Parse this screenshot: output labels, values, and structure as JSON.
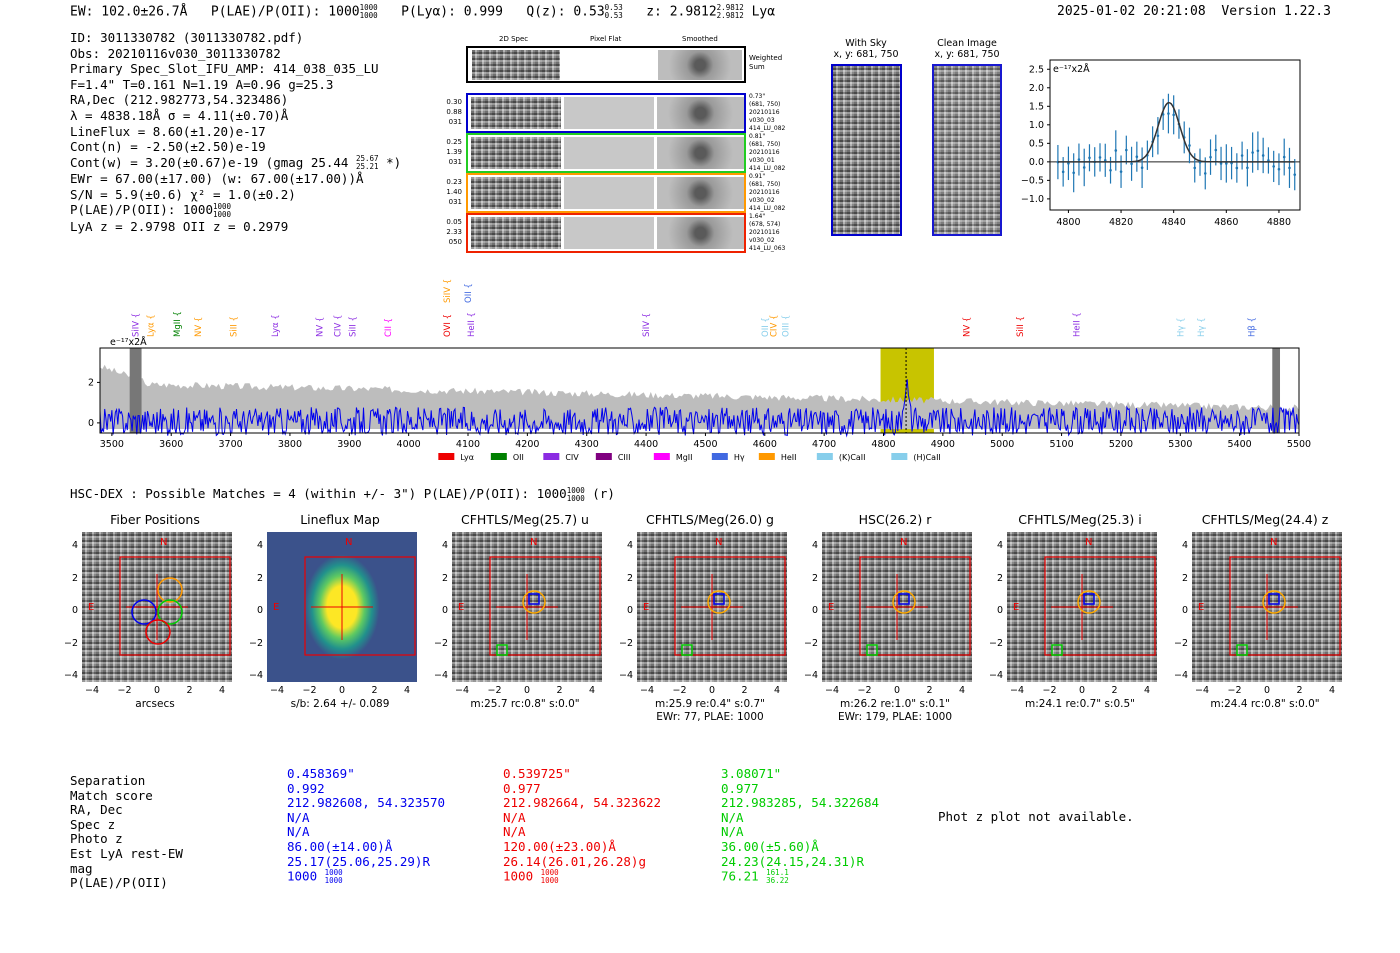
{
  "header": {
    "ew": "EW: 102.0±26.7Å",
    "plae_label": "P(LAE)/P(OII): 1000",
    "plae_hi": "1000",
    "plae_lo": "1000",
    "plya": "P(Lyα): 0.999",
    "qz": "Q(z): 0.53",
    "qz_hi": "0.53",
    "qz_lo": "0.53",
    "z": "z: 2.9812",
    "z_hi": "2.9812",
    "z_lo": "2.9812",
    "z_line": "Lyα",
    "datetime": "2025-01-02 20:21:08",
    "version": "Version 1.22.3"
  },
  "info": {
    "id": "ID: 3011330782 (3011330782.pdf)",
    "obs": "Obs: 20210116v030_3011330782",
    "slot": "Primary Spec_Slot_IFU_AMP: 414_038_035_LU",
    "params": "F=1.4\"  T=0.161  N=1.19  A=0.96  g=25.3",
    "radec": "RA,Dec (212.982773,54.323486)",
    "lambda": "λ = 4838.18Å  σ = 4.11(±0.70)Å",
    "lineflux": "LineFlux = 8.60(±1.20)e-17",
    "contn": "Cont(n) = -2.50(±2.50)e-19",
    "contw": "Cont(w) = 3.20(±0.67)e-19 (gmag 25.44",
    "contw_hi": "25.67",
    "contw_lo": "25.21",
    "contw_end": "*)",
    "ewr": "EWr = 67.00(±17.00) (w: 67.00(±17.00))Å",
    "sn": "S/N = 5.9(±0.6)  χ² = 1.0(±0.2)",
    "plae": "P(LAE)/P(OII): 1000",
    "plae_hi": "1000",
    "plae_lo": "1000",
    "lyaz": "LyA z = 2.9798  OII z = 0.2979"
  },
  "cutouts": {
    "col_labels": [
      "2D Spec",
      "Pixel Flat",
      "Smoothed"
    ],
    "weighted_sum": "Weighted Sum",
    "rows": [
      {
        "left": [
          "0.30",
          "0.88",
          "031"
        ],
        "right": [
          "0.73\"",
          "(681, 750)",
          "20210116",
          "v030_03",
          "414_LU_082"
        ],
        "color": "#0000cc"
      },
      {
        "left": [
          "0.25",
          "1.39",
          "031"
        ],
        "right": [
          "0.81\"",
          "(681, 750)",
          "20210116",
          "v030_01",
          "414_LU_082"
        ],
        "color": "#22cc22"
      },
      {
        "left": [
          "0.23",
          "1.40",
          "031"
        ],
        "right": [
          "0.91\"",
          "(681, 750)",
          "20210116",
          "v030_02",
          "414_LU_082"
        ],
        "color": "#ff9900"
      },
      {
        "left": [
          "0.05",
          "2.33",
          "050"
        ],
        "right": [
          "1.64\"",
          "(678, 574)",
          "20210116",
          "v030_02",
          "414_LU_063"
        ],
        "color": "#ee2200"
      }
    ]
  },
  "sky": {
    "with_sky_title": "With Sky",
    "with_sky_coords": "x, y: 681, 750",
    "clean_title": "Clean Image",
    "clean_coords": "x, y: 681, 750"
  },
  "zoom_plot": {
    "unit_label": "e⁻¹⁷x2Å",
    "yticks": [
      "2.5",
      "2.0",
      "1.5",
      "1.0",
      "0.5",
      "0.0",
      "−0.5",
      "−1.0"
    ],
    "xticks": [
      "4800",
      "4820",
      "4840",
      "4860",
      "4880"
    ]
  },
  "full_spectrum": {
    "unit_label": "e⁻¹⁷x2Å",
    "yticks": [
      "2",
      "0"
    ],
    "xticks": [
      "3500",
      "3600",
      "3700",
      "3800",
      "3900",
      "4000",
      "4100",
      "4200",
      "4300",
      "4400",
      "4500",
      "4600",
      "4700",
      "4800",
      "4900",
      "5000",
      "5100",
      "5200",
      "5300",
      "5400",
      "5500"
    ],
    "line_labels": [
      {
        "text": "SiIV",
        "color": "#8b2be2"
      },
      {
        "text": "Lyα",
        "color": "#ff9900"
      },
      {
        "text": "MgII",
        "color": "#008000"
      },
      {
        "text": "NV",
        "color": "#ff9900"
      },
      {
        "text": "SiII",
        "color": "#ff9900"
      },
      {
        "text": "Lyα",
        "color": "#8b2be2"
      },
      {
        "text": "NV",
        "color": "#8b2be2"
      },
      {
        "text": "CIV",
        "color": "#8b2be2"
      },
      {
        "text": "SiII",
        "color": "#8b2be2"
      },
      {
        "text": "CII",
        "color": "#ff00ff"
      },
      {
        "text": "OVI",
        "color": "#ee0000"
      },
      {
        "text": "HeII",
        "color": "#8b2be2"
      },
      {
        "text": "SiIV",
        "color": "#ff9900"
      },
      {
        "text": "OII",
        "color": "#4169e1"
      },
      {
        "text": "SiIV",
        "color": "#8b2be2"
      },
      {
        "text": "OII",
        "color": "#87ceeb"
      },
      {
        "text": "CIV",
        "color": "#ff9900"
      },
      {
        "text": "OIII",
        "color": "#87ceeb"
      },
      {
        "text": "NV",
        "color": "#ee0000"
      },
      {
        "text": "SiII",
        "color": "#ee0000"
      },
      {
        "text": "HeII",
        "color": "#8b2be2"
      },
      {
        "text": "Hγ",
        "color": "#87ceeb"
      },
      {
        "text": "Hγ",
        "color": "#87ceeb"
      },
      {
        "text": "Hβ",
        "color": "#4169e1"
      }
    ],
    "legend": [
      {
        "label": "Lyα",
        "color": "#ee0000"
      },
      {
        "label": "OII",
        "color": "#008000"
      },
      {
        "label": "CIV",
        "color": "#8b2be2"
      },
      {
        "label": "CIII",
        "color": "#800080"
      },
      {
        "label": "MgII",
        "color": "#ff00ff"
      },
      {
        "label": "Hγ",
        "color": "#4169e1"
      },
      {
        "label": "HeII",
        "color": "#ff9900"
      },
      {
        "label": "(K)CaII",
        "color": "#87ceeb"
      },
      {
        "label": "(H)CaII",
        "color": "#87ceeb"
      }
    ]
  },
  "hsc": {
    "title": "HSC-DEX : Possible Matches = 4 (within +/- 3\")  P(LAE)/P(OII): 1000",
    "plae_hi": "1000",
    "plae_lo": "1000",
    "band": "(r)"
  },
  "panels": [
    {
      "title": "Fiber Positions",
      "caption": [
        "arcsecs"
      ],
      "kind": "fiber"
    },
    {
      "title": "Lineflux Map",
      "caption": [
        "s/b: 2.64 +/- 0.089"
      ],
      "kind": "lineflux"
    },
    {
      "title": "CFHTLS/Meg(25.7) u",
      "caption": [
        "m:25.7 rc:0.8\"  s:0.0\""
      ],
      "kind": "img"
    },
    {
      "title": "CFHTLS/Meg(26.0) g",
      "caption": [
        "m:25.9  re:0.4\"  s:0.7\"",
        "EWr: 77, PLAE: 1000"
      ],
      "kind": "img"
    },
    {
      "title": "HSC(26.2) r",
      "caption": [
        "m:26.2 re:1.0\"  s:0.1\"",
        "EWr: 179, PLAE: 1000"
      ],
      "kind": "img"
    },
    {
      "title": "CFHTLS/Meg(25.3) i",
      "caption": [
        "m:24.1  re:0.7\"  s:0.5\""
      ],
      "kind": "img"
    },
    {
      "title": "CFHTLS/Meg(24.4) z",
      "caption": [
        "m:24.4 rc:0.8\"  s:0.0\""
      ],
      "kind": "img"
    }
  ],
  "panel_axis": {
    "yticks": [
      "4",
      "2",
      "0",
      "−2",
      "−4"
    ],
    "xticks": [
      "−4",
      "−2",
      "0",
      "2",
      "4"
    ],
    "n": "N",
    "e": "E"
  },
  "match_table": {
    "labels": [
      "Separation",
      "Match score",
      "RA, Dec",
      "Spec z",
      "Photo z",
      "Est LyA rest-EW",
      "mag",
      "P(LAE)/P(OII)"
    ],
    "columns": [
      {
        "color": "#0000ee",
        "values": [
          "0.458369\"",
          "0.992",
          "212.982608, 54.323570",
          "N/A",
          "N/A",
          "86.00(±14.00)Å",
          "25.17(25.06,25.29)R",
          "1000"
        ],
        "plae_hi": "1000",
        "plae_lo": "1000"
      },
      {
        "color": "#ee0000",
        "values": [
          "0.539725\"",
          "0.977",
          "212.982664, 54.323622",
          "N/A",
          "N/A",
          "120.00(±23.00)Å",
          "26.14(26.01,26.28)g",
          "1000"
        ],
        "plae_hi": "1000",
        "plae_lo": "1000"
      },
      {
        "color": "#00cc00",
        "values": [
          "3.08071\"",
          "0.977",
          "212.983285, 54.322684",
          "N/A",
          "N/A",
          "36.00(±5.60)Å",
          "24.23(24.15,24.31)R",
          "76.21"
        ],
        "plae_hi": "161.1",
        "plae_lo": "36.22"
      }
    ],
    "photz_note": "Phot z plot not available."
  }
}
